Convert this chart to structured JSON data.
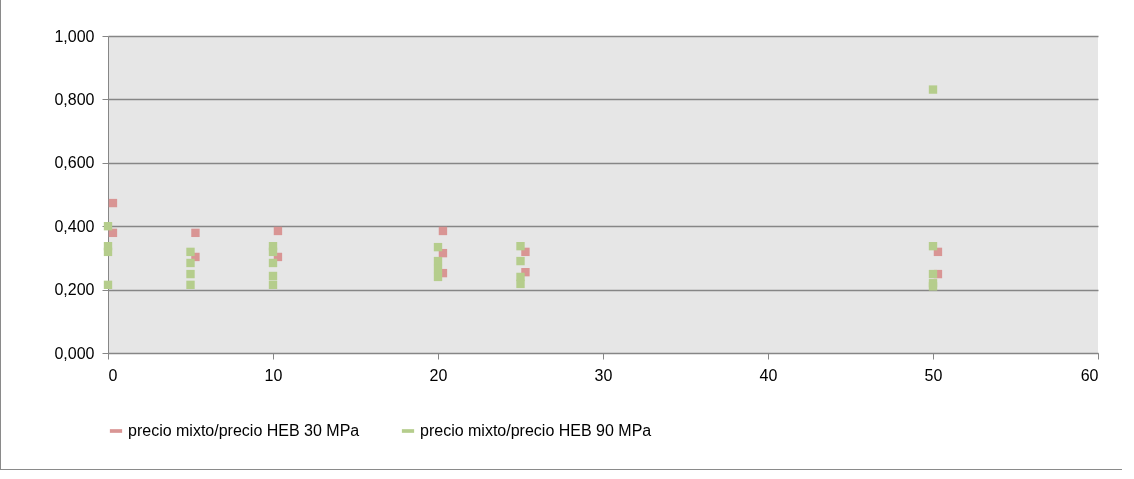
{
  "chart_data": {
    "type": "scatter",
    "xlim": [
      0,
      60
    ],
    "xticks": [
      0,
      10,
      20,
      30,
      40,
      50,
      60
    ],
    "ylim": [
      0,
      1
    ],
    "yticks": [
      {
        "value": 0,
        "label": "0,000"
      },
      {
        "value": 0.2,
        "label": "0,200"
      },
      {
        "value": 0.4,
        "label": "0,400"
      },
      {
        "value": 0.6,
        "label": "0,600"
      },
      {
        "value": 0.8,
        "label": "0,800"
      },
      {
        "value": 1,
        "label": "1,000"
      }
    ],
    "grid": "y",
    "legend": "bottom",
    "series": [
      {
        "name": "precio mixto/precio HEB 30 MPa",
        "color": "#d99594",
        "marker": "square",
        "x": [
          0.3,
          0.3,
          5.3,
          5.3,
          10.3,
          10.3,
          20.3,
          20.3,
          20.3,
          25.3,
          25.3,
          50.3,
          50.3
        ],
        "values": [
          0.473,
          0.379,
          0.379,
          0.303,
          0.385,
          0.303,
          0.385,
          0.315,
          0.252,
          0.319,
          0.255,
          0.319,
          0.249
        ]
      },
      {
        "name": "precio mixto/precio HEB 90 MPa",
        "color": "#b5cd8c",
        "marker": "square",
        "x": [
          0,
          0,
          0,
          0,
          5,
          5,
          5,
          5,
          10,
          10,
          10,
          10,
          10,
          20,
          20,
          20,
          20,
          25,
          25,
          25,
          25,
          50,
          50,
          50,
          50,
          50
        ],
        "values": [
          0.4,
          0.337,
          0.319,
          0.215,
          0.319,
          0.284,
          0.249,
          0.215,
          0.337,
          0.319,
          0.284,
          0.243,
          0.215,
          0.334,
          0.29,
          0.265,
          0.24,
          0.337,
          0.29,
          0.24,
          0.218,
          0.831,
          0.337,
          0.249,
          0.22,
          0.21
        ]
      }
    ]
  }
}
